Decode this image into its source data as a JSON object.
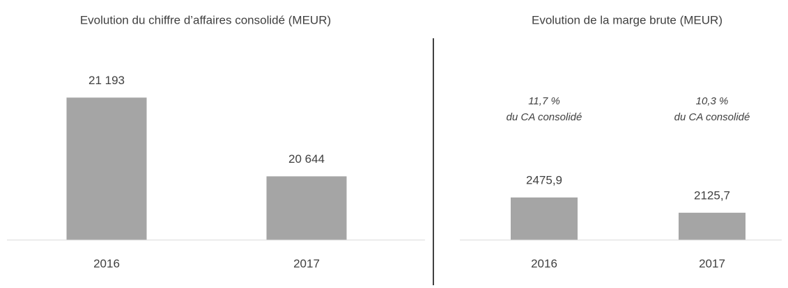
{
  "chart_data": [
    {
      "type": "bar",
      "title": "Evolution du chiffre d’affaires consolidé (MEUR)",
      "categories": [
        "2016",
        "2017"
      ],
      "values": [
        21193,
        20644
      ],
      "value_labels": [
        "21 193",
        "20 644"
      ],
      "color": "#a5a5a5",
      "ylim": [
        20200,
        21500
      ]
    },
    {
      "type": "bar",
      "title": "Evolution de la marge brute (MEUR)",
      "categories": [
        "2016",
        "2017"
      ],
      "values": [
        2475.9,
        2125.7
      ],
      "value_labels": [
        "2475,9",
        "2125,7"
      ],
      "annotations": [
        [
          "11,7 %",
          "du CA consolidé"
        ],
        [
          "10,3 %",
          "du CA consolidé"
        ]
      ],
      "color": "#a5a5a5",
      "ylim": [
        1500,
        3000
      ]
    }
  ]
}
